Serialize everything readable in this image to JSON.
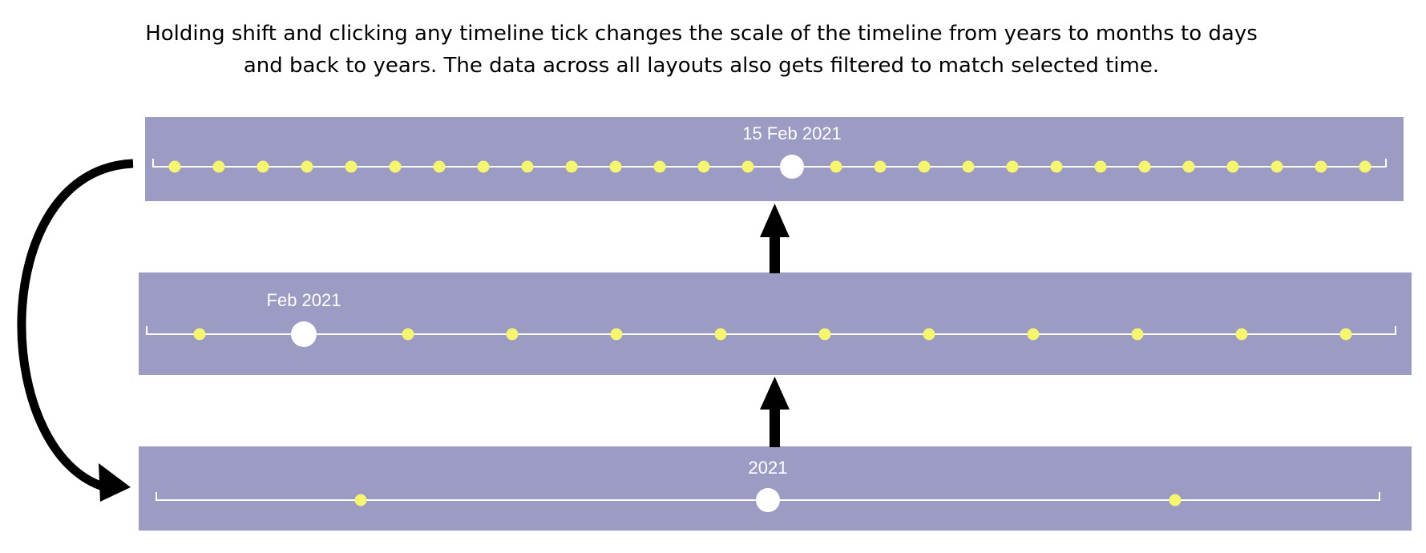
{
  "caption": {
    "line1": "Holding shift and clicking any timeline tick changes the scale of the timeline from years to months to days",
    "line2": "and back to years. The data across all layouts also gets filtered to match selected time."
  },
  "colors": {
    "panel": "#9b9bc4",
    "tick": "#f5f56e",
    "selected": "#ffffff",
    "axis": "#ffffff",
    "arrow": "#000000"
  },
  "timelines": {
    "days": {
      "scale": "days",
      "selected_label": "15 Feb 2021",
      "tick_count": 28,
      "selected_index": 14
    },
    "months": {
      "scale": "months",
      "selected_label": "Feb 2021",
      "tick_count": 12,
      "selected_index": 1
    },
    "years": {
      "scale": "years",
      "selected_label": "2021",
      "tick_count": 3,
      "selected_index": 1
    }
  }
}
